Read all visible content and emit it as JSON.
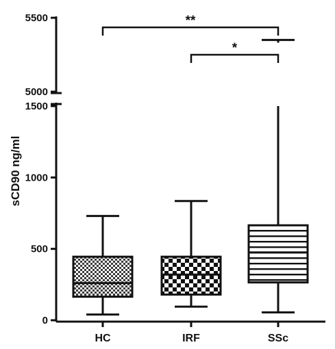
{
  "chart_data": {
    "type": "box",
    "ylabel": "sCD90 ng/ml",
    "xlabel": "",
    "title": "",
    "categories": [
      "HC",
      "IRF",
      "SSc"
    ],
    "axis_break": {
      "lower_range": [
        0,
        1500
      ],
      "upper_range": [
        5000,
        5500
      ]
    },
    "lower_ticks": [
      {
        "value": 0,
        "label": "0"
      },
      {
        "value": 500,
        "label": "500"
      },
      {
        "value": 1000,
        "label": "1000"
      },
      {
        "value": 1500,
        "label": "1500"
      }
    ],
    "upper_ticks": [
      {
        "value": 5000,
        "label": "5000"
      },
      {
        "value": 5500,
        "label": "5500"
      }
    ],
    "boxes": [
      {
        "category": "HC",
        "min": 40,
        "q1": 165,
        "median": 260,
        "q3": 445,
        "max": 730,
        "pattern": "checker-fine"
      },
      {
        "category": "IRF",
        "min": 95,
        "q1": 180,
        "median": 320,
        "q3": 445,
        "max": 835,
        "pattern": "checker-coarse"
      },
      {
        "category": "SSc",
        "min": 55,
        "q1": 265,
        "median": 475,
        "q3": 665,
        "max": 5350,
        "pattern": "horizontal-lines"
      }
    ],
    "significance": [
      {
        "from": "HC",
        "to": "SSc",
        "label": "**"
      },
      {
        "from": "IRF",
        "to": "SSc",
        "label": "*"
      }
    ],
    "grid": false,
    "legend": "none"
  },
  "colors": {
    "ink": "#111111",
    "fill": "#ffffff"
  }
}
